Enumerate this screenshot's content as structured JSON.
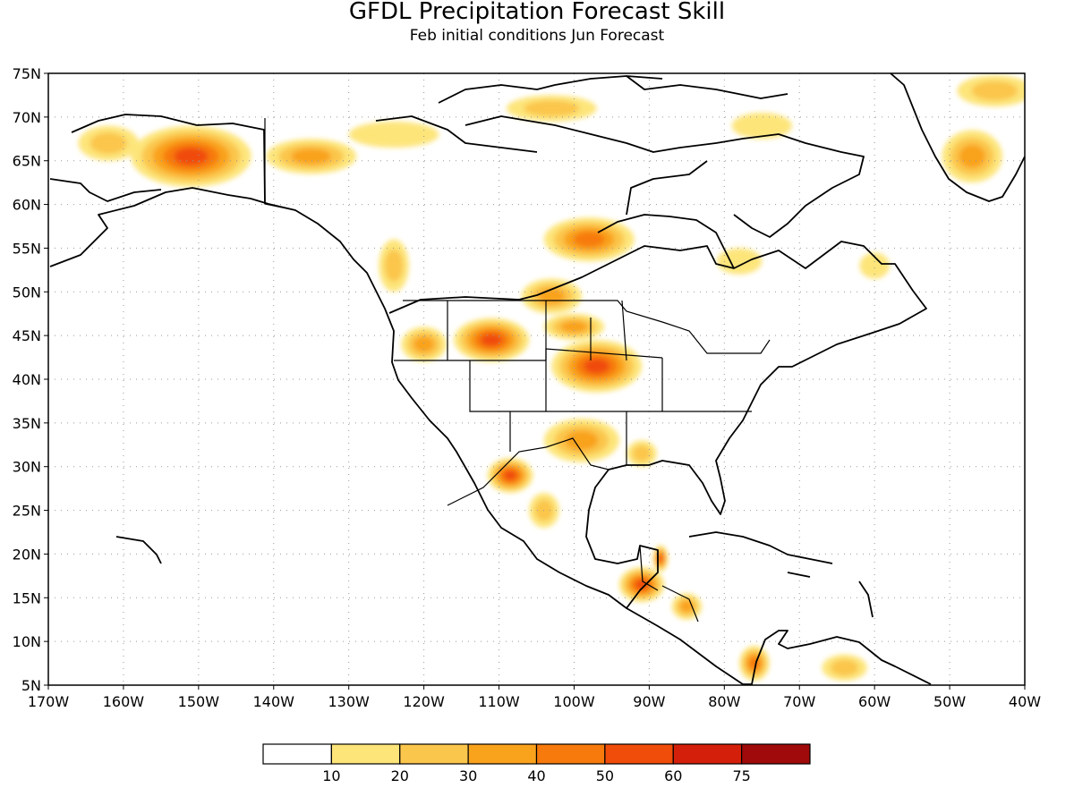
{
  "title": "GFDL Precipitation Forecast Skill",
  "subtitle": "Feb initial conditions  Jun Forecast",
  "map": {
    "lon_min": -170,
    "lon_max": -40,
    "lat_min": 5,
    "lat_max": 75,
    "grid": "dotted",
    "lon_ticks": [
      "170W",
      "160W",
      "150W",
      "140W",
      "130W",
      "120W",
      "110W",
      "100W",
      "90W",
      "80W",
      "70W",
      "60W",
      "50W",
      "40W"
    ],
    "lat_ticks": [
      "5N",
      "10N",
      "15N",
      "20N",
      "25N",
      "30N",
      "35N",
      "40N",
      "45N",
      "50N",
      "55N",
      "60N",
      "65N",
      "70N",
      "75N"
    ]
  },
  "colorbar": {
    "colors": [
      "#ffffff",
      "#fde57a",
      "#fbc64c",
      "#f9a21c",
      "#f77a0c",
      "#f04c0a",
      "#d4200a",
      "#a00a0a"
    ],
    "labels": [
      "10",
      "20",
      "30",
      "40",
      "50",
      "60",
      "75"
    ]
  },
  "skill_regions": [
    {
      "name": "alaska-interior",
      "lon": -151,
      "lat": 65.5,
      "rx": 8,
      "ry": 3.5,
      "level": 5
    },
    {
      "name": "alaska-west",
      "lon": -162,
      "lat": 67,
      "rx": 4,
      "ry": 2,
      "level": 2
    },
    {
      "name": "yukon",
      "lon": -135,
      "lat": 65.5,
      "rx": 6,
      "ry": 2,
      "level": 3
    },
    {
      "name": "nw-territories",
      "lon": -124,
      "lat": 68,
      "rx": 6,
      "ry": 1.5,
      "level": 1
    },
    {
      "name": "arctic-islands",
      "lon": -103,
      "lat": 71,
      "rx": 6,
      "ry": 1.5,
      "level": 2
    },
    {
      "name": "baffin",
      "lon": -75,
      "lat": 69,
      "rx": 4,
      "ry": 1.5,
      "level": 1
    },
    {
      "name": "greenland-south",
      "lon": -47,
      "lat": 65.5,
      "rx": 4,
      "ry": 3,
      "level": 3
    },
    {
      "name": "greenland-north",
      "lon": -44,
      "lat": 73,
      "rx": 5,
      "ry": 1.8,
      "level": 2
    },
    {
      "name": "hudson-south",
      "lon": -98,
      "lat": 56,
      "rx": 6,
      "ry": 2.5,
      "level": 4
    },
    {
      "name": "manitoba",
      "lon": -103,
      "lat": 49.5,
      "rx": 4,
      "ry": 2,
      "level": 3
    },
    {
      "name": "bc-coast",
      "lon": -124,
      "lat": 53,
      "rx": 2,
      "ry": 3,
      "level": 2
    },
    {
      "name": "montana-idaho",
      "lon": -111,
      "lat": 44.5,
      "rx": 5,
      "ry": 2.5,
      "level": 5
    },
    {
      "name": "oregon",
      "lon": -120,
      "lat": 44,
      "rx": 3,
      "ry": 2,
      "level": 3
    },
    {
      "name": "nebraska-iowa",
      "lon": -97,
      "lat": 41.5,
      "rx": 6,
      "ry": 3,
      "level": 5
    },
    {
      "name": "south-dakota",
      "lon": -100,
      "lat": 46,
      "rx": 4,
      "ry": 1.5,
      "level": 3
    },
    {
      "name": "texas-oklahoma",
      "lon": -99,
      "lat": 33,
      "rx": 5,
      "ry": 2.5,
      "level": 3
    },
    {
      "name": "louisiana",
      "lon": -91,
      "lat": 31.5,
      "rx": 2,
      "ry": 1.5,
      "level": 2
    },
    {
      "name": "chihuahua",
      "lon": -108.5,
      "lat": 29,
      "rx": 3,
      "ry": 2,
      "level": 5
    },
    {
      "name": "central-mexico",
      "lon": -104,
      "lat": 25,
      "rx": 2,
      "ry": 2,
      "level": 2
    },
    {
      "name": "yucatan-guatemala",
      "lon": -91,
      "lat": 16.5,
      "rx": 3,
      "ry": 2,
      "level": 5
    },
    {
      "name": "yucatan-east",
      "lon": -88.5,
      "lat": 19.5,
      "rx": 1,
      "ry": 1.5,
      "level": 5
    },
    {
      "name": "honduras",
      "lon": -85,
      "lat": 14,
      "rx": 2,
      "ry": 1.5,
      "level": 3
    },
    {
      "name": "colombia",
      "lon": -76,
      "lat": 7.5,
      "rx": 2,
      "ry": 2,
      "level": 4
    },
    {
      "name": "venezuela",
      "lon": -64,
      "lat": 7,
      "rx": 3,
      "ry": 1.5,
      "level": 2
    },
    {
      "name": "ontario",
      "lon": -78,
      "lat": 53.5,
      "rx": 3,
      "ry": 1.5,
      "level": 1
    },
    {
      "name": "quebec",
      "lon": -60,
      "lat": 53,
      "rx": 2,
      "ry": 1.5,
      "level": 1
    }
  ]
}
